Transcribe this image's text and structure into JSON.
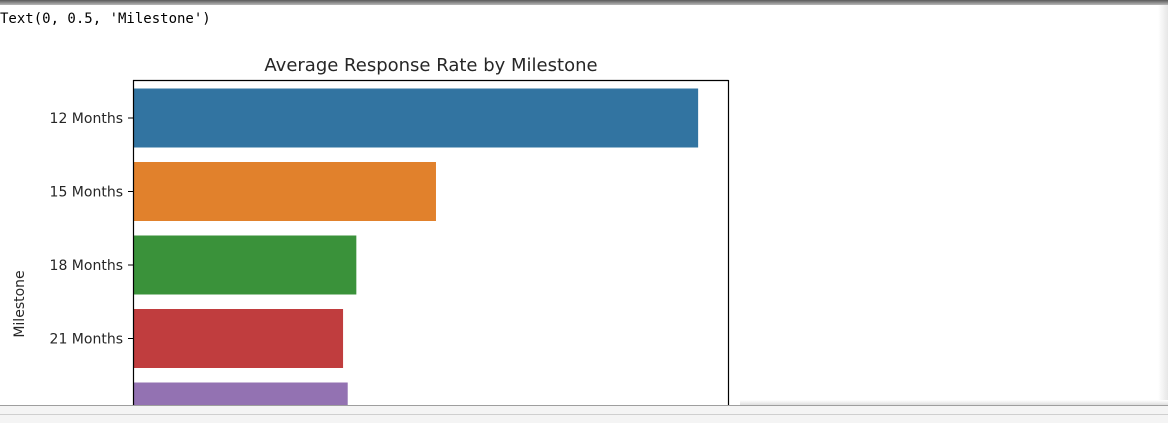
{
  "output": {
    "text": "Text(0, 0.5, 'Milestone')"
  },
  "chart_data": {
    "type": "bar",
    "orientation": "horizontal",
    "title": "Average Response Rate by Milestone",
    "ylabel": "Milestone",
    "xlabel": "",
    "categories": [
      "12 Months",
      "15 Months",
      "18 Months",
      "21 Months",
      ""
    ],
    "values": [
      0.85,
      0.455,
      0.335,
      0.315,
      0.322
    ],
    "xlim": [
      0,
      0.895
    ],
    "colors": [
      "#3274a1",
      "#e1812c",
      "#3a923a",
      "#c03d3e",
      "#9372b2"
    ],
    "grid": false,
    "legend": "none"
  }
}
